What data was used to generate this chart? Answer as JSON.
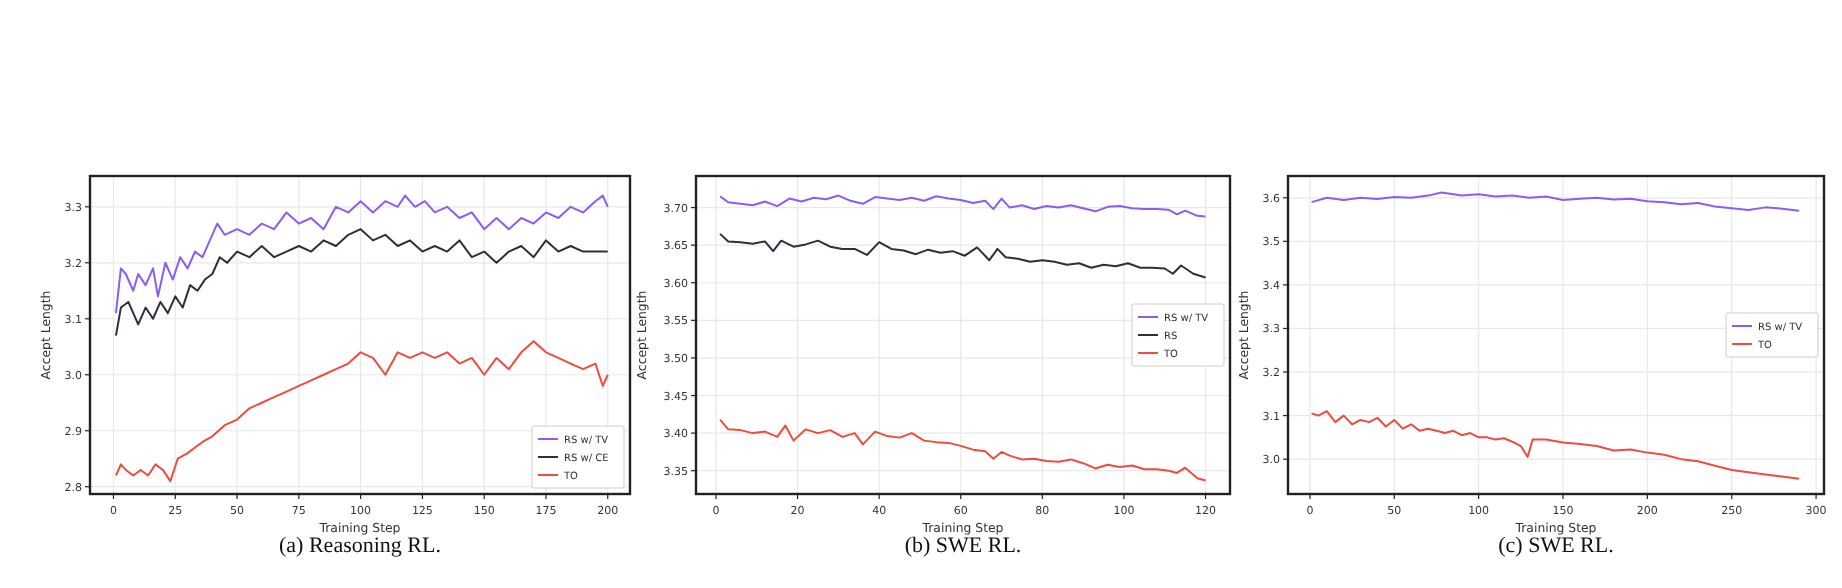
{
  "chart_data": [
    {
      "type": "line",
      "title": "(a) Reasoning RL.",
      "xlabel": "Training Step",
      "ylabel": "Accept Length",
      "xlim": [
        -9.5,
        209
      ],
      "xticks": [
        0,
        25,
        50,
        75,
        100,
        125,
        150,
        175,
        200
      ],
      "ylim": [
        2.787,
        3.355
      ],
      "yticks": [
        2.8,
        2.9,
        {
          "value": 3,
          "label": "3.0"
        },
        3.1,
        3.2,
        3.3
      ],
      "grid": true,
      "legend": "bottom right",
      "series": [
        {
          "name": "RS w/ TV",
          "color": "#8b5cf6",
          "x": [
            1,
            3,
            5,
            8,
            10,
            13,
            16,
            18,
            21,
            24,
            27,
            30,
            33,
            36,
            39,
            42,
            45,
            50,
            55,
            60,
            65,
            70,
            75,
            80,
            85,
            90,
            95,
            100,
            105,
            110,
            115,
            118,
            122,
            126,
            130,
            135,
            140,
            145,
            150,
            155,
            160,
            165,
            170,
            175,
            180,
            185,
            190,
            195,
            198,
            200
          ],
          "values": [
            3.11,
            3.19,
            3.18,
            3.15,
            3.18,
            3.16,
            3.19,
            3.14,
            3.2,
            3.17,
            3.21,
            3.19,
            3.22,
            3.21,
            3.24,
            3.27,
            3.25,
            3.26,
            3.25,
            3.27,
            3.26,
            3.29,
            3.27,
            3.28,
            3.26,
            3.3,
            3.29,
            3.31,
            3.29,
            3.31,
            3.3,
            3.32,
            3.3,
            3.31,
            3.29,
            3.3,
            3.28,
            3.29,
            3.26,
            3.28,
            3.26,
            3.28,
            3.27,
            3.29,
            3.28,
            3.3,
            3.29,
            3.31,
            3.32,
            3.3
          ]
        },
        {
          "name": "RS w/ CE",
          "color": "#2e2e3e",
          "x": [
            1,
            3,
            6,
            10,
            13,
            16,
            19,
            22,
            25,
            28,
            31,
            34,
            37,
            40,
            43,
            46,
            50,
            55,
            60,
            65,
            70,
            75,
            80,
            85,
            90,
            95,
            100,
            105,
            110,
            115,
            120,
            125,
            130,
            135,
            140,
            145,
            150,
            155,
            160,
            165,
            170,
            175,
            180,
            185,
            190,
            195,
            200
          ],
          "values": [
            3.07,
            3.12,
            3.13,
            3.09,
            3.12,
            3.1,
            3.13,
            3.11,
            3.14,
            3.12,
            3.16,
            3.15,
            3.17,
            3.18,
            3.21,
            3.2,
            3.22,
            3.21,
            3.23,
            3.21,
            3.22,
            3.23,
            3.22,
            3.24,
            3.23,
            3.25,
            3.26,
            3.24,
            3.25,
            3.23,
            3.24,
            3.22,
            3.23,
            3.22,
            3.24,
            3.21,
            3.22,
            3.2,
            3.22,
            3.23,
            3.21,
            3.24,
            3.22,
            3.23,
            3.22,
            3.22,
            3.22
          ]
        },
        {
          "name": "TO",
          "color": "#ef4b3f",
          "x": [
            1,
            3,
            5,
            8,
            11,
            14,
            17,
            20,
            23,
            26,
            30,
            33,
            36,
            40,
            45,
            50,
            55,
            60,
            65,
            70,
            75,
            80,
            85,
            90,
            95,
            100,
            105,
            110,
            115,
            120,
            125,
            130,
            135,
            140,
            145,
            150,
            155,
            160,
            165,
            170,
            175,
            180,
            185,
            190,
            195,
            198,
            200
          ],
          "values": [
            2.82,
            2.84,
            2.83,
            2.82,
            2.83,
            2.82,
            2.84,
            2.83,
            2.81,
            2.85,
            2.86,
            2.87,
            2.88,
            2.89,
            2.91,
            2.92,
            2.94,
            2.95,
            2.96,
            2.97,
            2.98,
            2.99,
            3.0,
            3.01,
            3.02,
            3.04,
            3.03,
            3.0,
            3.04,
            3.03,
            3.04,
            3.03,
            3.04,
            3.02,
            3.03,
            3.0,
            3.03,
            3.01,
            3.04,
            3.06,
            3.04,
            3.03,
            3.02,
            3.01,
            3.02,
            2.98,
            3.0
          ]
        }
      ]
    },
    {
      "type": "line",
      "title": "(b) SWE RL.",
      "xlabel": "Training Step",
      "ylabel": "Accept Length",
      "xlim": [
        -4.9,
        126
      ],
      "xticks": [
        0,
        20,
        40,
        60,
        80,
        100,
        120
      ],
      "ylim": [
        3.319,
        3.742
      ],
      "yticks": [
        {
          "value": 3.35,
          "label": "3.35"
        },
        {
          "value": 3.4,
          "label": "3.40"
        },
        {
          "value": 3.45,
          "label": "3.45"
        },
        {
          "value": 3.5,
          "label": "3.50"
        },
        {
          "value": 3.55,
          "label": "3.55"
        },
        {
          "value": 3.6,
          "label": "3.60"
        },
        {
          "value": 3.65,
          "label": "3.65"
        },
        {
          "value": 3.7,
          "label": "3.70"
        }
      ],
      "grid": true,
      "legend": "right",
      "series": [
        {
          "name": "RS w/ TV",
          "color": "#8b5cf6",
          "x": [
            1,
            3,
            6,
            9,
            12,
            15,
            18,
            21,
            24,
            27,
            30,
            33,
            36,
            39,
            42,
            45,
            48,
            51,
            54,
            57,
            60,
            63,
            66,
            68,
            70,
            72,
            75,
            78,
            81,
            84,
            87,
            90,
            93,
            96,
            99,
            102,
            105,
            108,
            111,
            113,
            115,
            118,
            120
          ],
          "values": [
            3.715,
            3.707,
            3.705,
            3.703,
            3.708,
            3.702,
            3.712,
            3.708,
            3.713,
            3.711,
            3.716,
            3.709,
            3.705,
            3.714,
            3.712,
            3.71,
            3.713,
            3.709,
            3.715,
            3.712,
            3.71,
            3.706,
            3.709,
            3.698,
            3.712,
            3.7,
            3.703,
            3.698,
            3.702,
            3.7,
            3.703,
            3.699,
            3.695,
            3.701,
            3.702,
            3.699,
            3.698,
            3.698,
            3.697,
            3.691,
            3.696,
            3.689,
            3.688
          ]
        },
        {
          "name": "RS",
          "color": "#2e2e3e",
          "x": [
            1,
            3,
            6,
            9,
            12,
            14,
            16,
            19,
            22,
            25,
            28,
            31,
            34,
            37,
            40,
            43,
            46,
            49,
            52,
            55,
            58,
            61,
            64,
            67,
            69,
            71,
            74,
            77,
            80,
            83,
            86,
            89,
            92,
            95,
            98,
            101,
            104,
            107,
            110,
            112,
            114,
            117,
            120
          ],
          "values": [
            3.665,
            3.655,
            3.654,
            3.652,
            3.655,
            3.642,
            3.656,
            3.648,
            3.651,
            3.656,
            3.648,
            3.645,
            3.645,
            3.637,
            3.654,
            3.645,
            3.643,
            3.638,
            3.644,
            3.64,
            3.642,
            3.636,
            3.647,
            3.63,
            3.645,
            3.634,
            3.632,
            3.628,
            3.63,
            3.628,
            3.624,
            3.626,
            3.62,
            3.624,
            3.622,
            3.626,
            3.62,
            3.62,
            3.619,
            3.612,
            3.623,
            3.612,
            3.607
          ]
        },
        {
          "name": "TO",
          "color": "#ef4b3f",
          "x": [
            1,
            3,
            6,
            9,
            12,
            15,
            17,
            19,
            22,
            25,
            28,
            31,
            34,
            36,
            39,
            42,
            45,
            48,
            51,
            54,
            57,
            60,
            63,
            66,
            68,
            70,
            72,
            75,
            78,
            81,
            84,
            87,
            90,
            93,
            96,
            99,
            102,
            105,
            108,
            111,
            113,
            115,
            118,
            120
          ],
          "values": [
            3.418,
            3.405,
            3.404,
            3.4,
            3.402,
            3.395,
            3.41,
            3.39,
            3.405,
            3.4,
            3.404,
            3.395,
            3.4,
            3.385,
            3.402,
            3.396,
            3.394,
            3.4,
            3.39,
            3.388,
            3.387,
            3.383,
            3.378,
            3.376,
            3.366,
            3.375,
            3.37,
            3.365,
            3.366,
            3.363,
            3.362,
            3.365,
            3.36,
            3.353,
            3.358,
            3.355,
            3.357,
            3.352,
            3.352,
            3.35,
            3.347,
            3.354,
            3.34,
            3.337
          ]
        }
      ]
    },
    {
      "type": "line",
      "title": "(c) SWE RL.",
      "xlabel": "Training Step",
      "ylabel": "Accept Length",
      "xlim": [
        -13,
        304.7
      ],
      "xticks": [
        0,
        50,
        100,
        150,
        200,
        250,
        300
      ],
      "ylim": [
        2.92,
        3.65
      ],
      "yticks": [
        {
          "value": 3,
          "label": "3.0"
        },
        3.1,
        3.2,
        3.3,
        3.4,
        3.5,
        3.6
      ],
      "grid": true,
      "legend": "right",
      "series": [
        {
          "name": "RS w/ TV",
          "color": "#8b5cf6",
          "x": [
            1,
            10,
            20,
            30,
            40,
            50,
            60,
            70,
            78,
            90,
            100,
            110,
            120,
            130,
            140,
            150,
            160,
            170,
            180,
            190,
            200,
            210,
            220,
            230,
            240,
            250,
            260,
            270,
            280,
            290
          ],
          "values": [
            3.59,
            3.6,
            3.595,
            3.6,
            3.597,
            3.602,
            3.6,
            3.605,
            3.612,
            3.605,
            3.608,
            3.603,
            3.605,
            3.6,
            3.603,
            3.595,
            3.598,
            3.6,
            3.596,
            3.598,
            3.592,
            3.59,
            3.585,
            3.588,
            3.58,
            3.576,
            3.572,
            3.578,
            3.575,
            3.57
          ]
        },
        {
          "name": "TO",
          "color": "#ef4b3f",
          "x": [
            1,
            5,
            10,
            15,
            20,
            25,
            30,
            35,
            40,
            45,
            50,
            55,
            60,
            65,
            70,
            75,
            80,
            85,
            90,
            95,
            100,
            105,
            110,
            115,
            120,
            125,
            129,
            132,
            140,
            150,
            160,
            170,
            180,
            190,
            200,
            210,
            220,
            230,
            240,
            250,
            260,
            270,
            280,
            290
          ],
          "values": [
            3.105,
            3.1,
            3.11,
            3.085,
            3.1,
            3.08,
            3.09,
            3.085,
            3.095,
            3.075,
            3.09,
            3.07,
            3.08,
            3.065,
            3.07,
            3.065,
            3.06,
            3.065,
            3.055,
            3.06,
            3.05,
            3.05,
            3.045,
            3.048,
            3.04,
            3.03,
            3.005,
            3.045,
            3.045,
            3.038,
            3.035,
            3.03,
            3.02,
            3.022,
            3.015,
            3.01,
            3.0,
            2.995,
            2.985,
            2.975,
            2.97,
            2.965,
            2.96,
            2.955
          ]
        }
      ]
    }
  ]
}
